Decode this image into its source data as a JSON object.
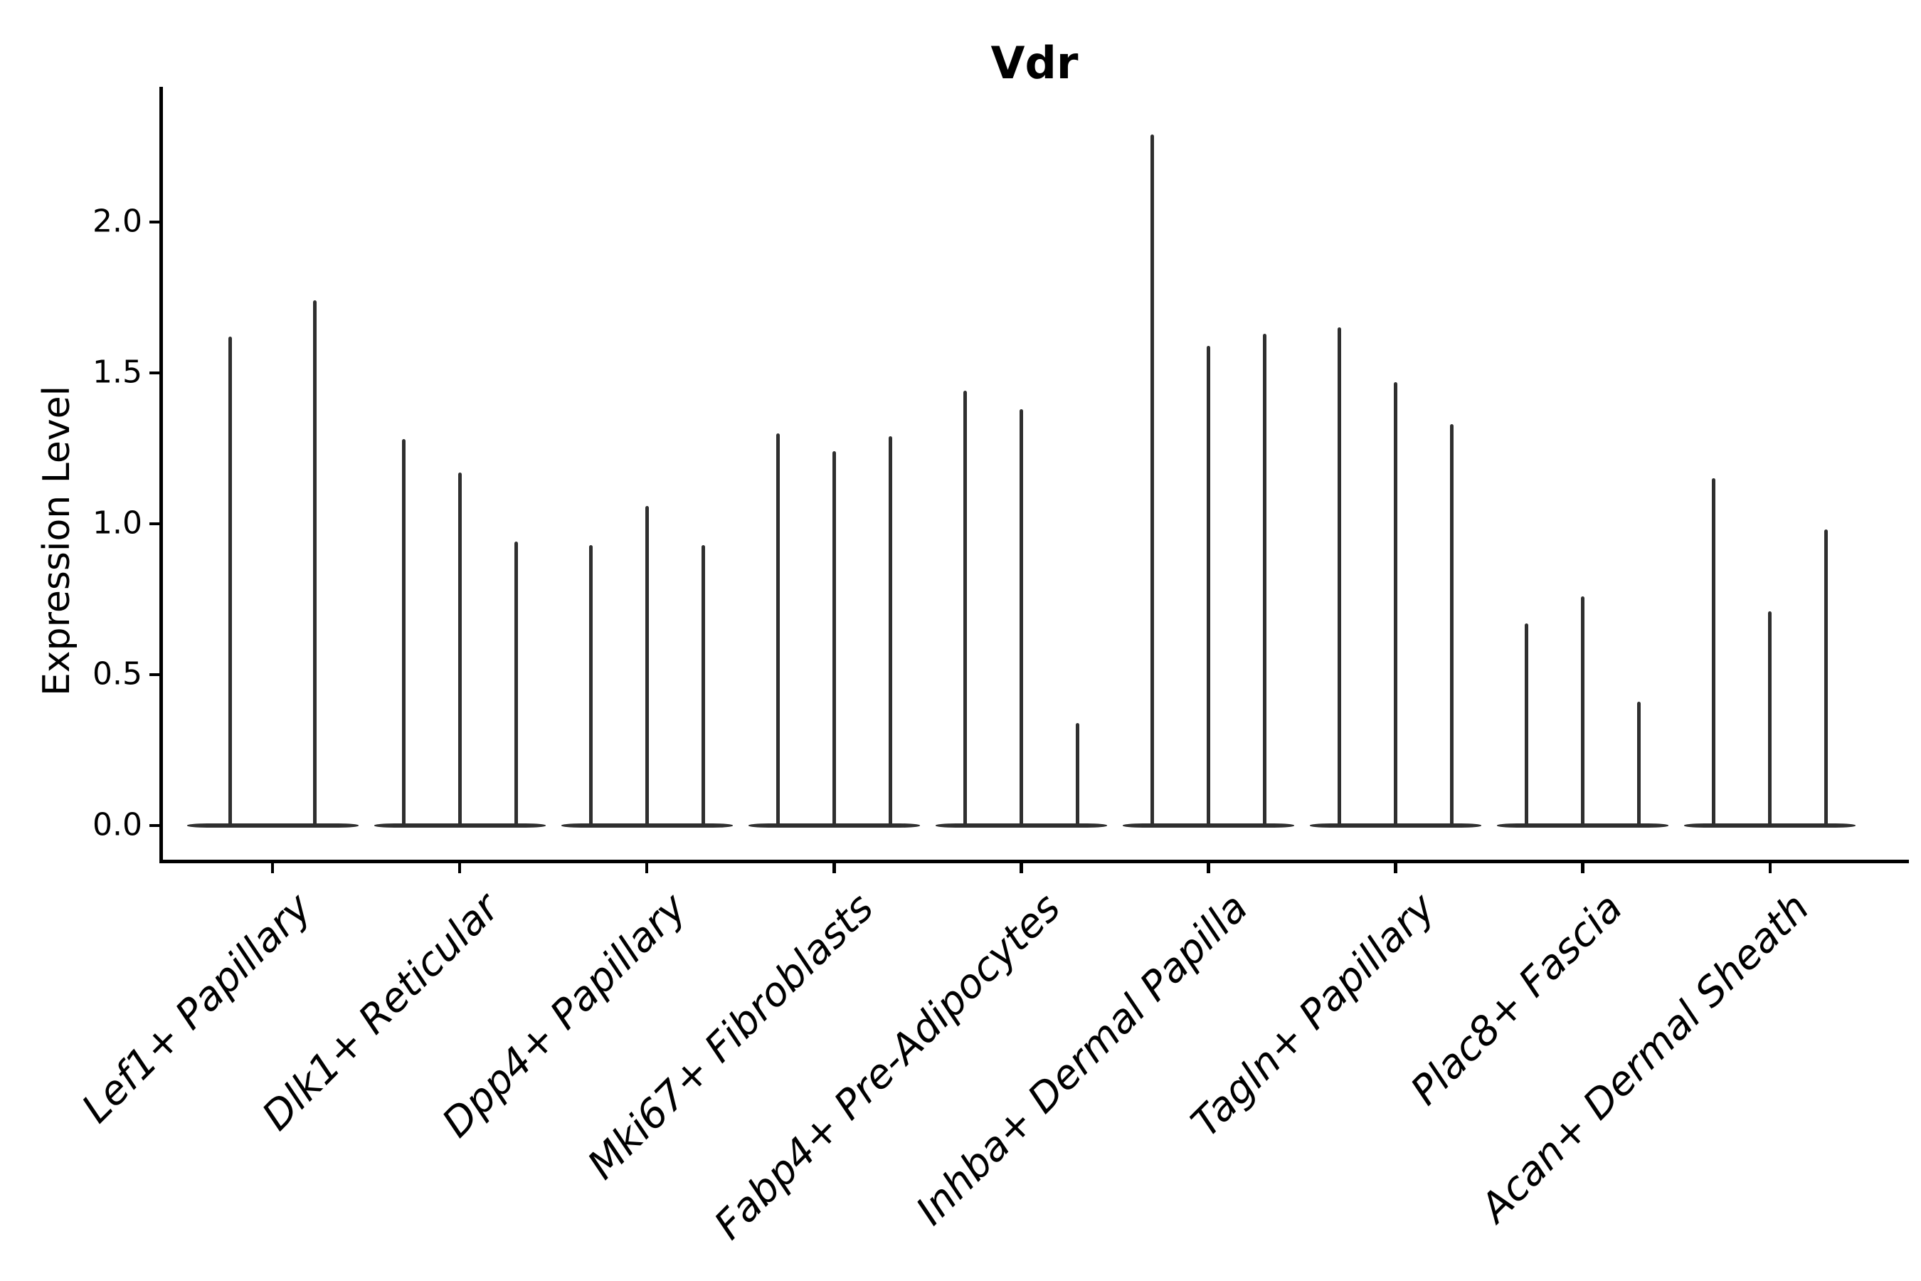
{
  "figure": {
    "title": "Vdr"
  },
  "chart_data": {
    "type": "violin",
    "title": "Vdr",
    "xlabel": "",
    "ylabel": "Expression Level",
    "yticks": [
      0.0,
      0.5,
      1.0,
      1.5,
      2.0
    ],
    "ylim": [
      -0.12,
      2.45
    ],
    "grid": false,
    "legend": "none",
    "style_note": "pencil-thin violins: bulk of distribution at 0 (wide flat base), thin spike rising to max expression",
    "categories": [
      "Lef1+ Papillary",
      "Dlk1+ Reticular",
      "Dpp4+ Papillary",
      "Mki67+ Fibroblasts",
      "Fabp4+ Pre-Adipocytes",
      "Inhba+ Dermal Papilla",
      "Tagln+ Papillary",
      "Plac8+ Fascia",
      "Acan+ Dermal Sheath"
    ],
    "groups": [
      {
        "label": "Lef1+ Papillary",
        "violin_max_values": [
          1.62,
          1.74
        ]
      },
      {
        "label": "Dlk1+ Reticular",
        "violin_max_values": [
          1.28,
          1.17,
          0.94
        ]
      },
      {
        "label": "Dpp4+ Papillary",
        "violin_max_values": [
          0.93,
          1.06,
          0.93
        ]
      },
      {
        "label": "Mki67+ Fibroblasts",
        "violin_max_values": [
          1.3,
          1.24,
          1.29
        ]
      },
      {
        "label": "Fabp4+ Pre-Adipocytes",
        "violin_max_values": [
          1.44,
          1.38,
          0.34
        ]
      },
      {
        "label": "Inhba+ Dermal Papilla",
        "violin_max_values": [
          2.29,
          1.59,
          1.63
        ]
      },
      {
        "label": "Tagln+ Papillary",
        "violin_max_values": [
          1.65,
          1.47,
          1.33
        ]
      },
      {
        "label": "Plac8+ Fascia",
        "violin_max_values": [
          0.67,
          0.76,
          0.41
        ]
      },
      {
        "label": "Acan+ Dermal Sheath",
        "violin_max_values": [
          1.15,
          0.71,
          0.98
        ]
      }
    ],
    "colors": {
      "violin": "#2f2f2f",
      "axis": "#000000",
      "text": "#000000",
      "background": "#ffffff"
    }
  }
}
